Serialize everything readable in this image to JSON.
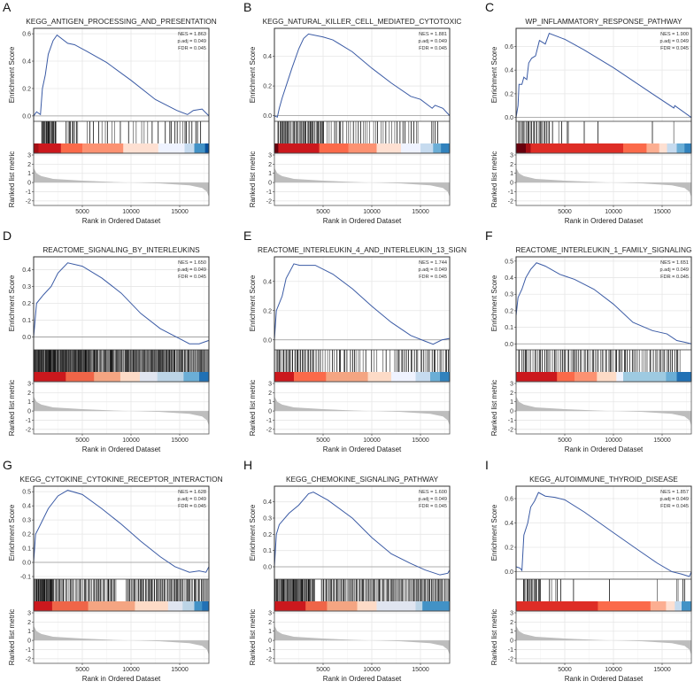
{
  "chart_data": [
    {
      "panel": "A",
      "type": "line",
      "title": "KEGG_ANTIGEN_PROCESSING_AND_PRESENTATION",
      "nes": "NES = 1.863",
      "padj": "p.adj = 0.049",
      "fdr": "FDR = 0.045",
      "ylim": [
        -0.02,
        0.62
      ],
      "yticks": [
        0,
        0.2,
        0.4,
        0.6
      ],
      "es": [
        [
          0,
          0
        ],
        [
          300,
          0.03
        ],
        [
          700,
          0.01
        ],
        [
          900,
          0.2
        ],
        [
          1200,
          0.3
        ],
        [
          1500,
          0.45
        ],
        [
          2000,
          0.55
        ],
        [
          2400,
          0.59
        ],
        [
          3500,
          0.53
        ],
        [
          4200,
          0.52
        ],
        [
          5500,
          0.47
        ],
        [
          7500,
          0.39
        ],
        [
          10000,
          0.26
        ],
        [
          12500,
          0.12
        ],
        [
          14700,
          0.04
        ],
        [
          15800,
          0.01
        ],
        [
          16400,
          0.04
        ],
        [
          17300,
          0.05
        ],
        [
          18000,
          0
        ]
      ],
      "hit_ranges": [
        [
          800,
          2300,
          22
        ],
        [
          3300,
          4600,
          9
        ],
        [
          5300,
          9000,
          10
        ],
        [
          9500,
          13000,
          8
        ],
        [
          13500,
          17300,
          14
        ]
      ],
      "heat": [
        [
          0,
          "#a50f15"
        ],
        [
          500,
          "#cb181d"
        ],
        [
          2800,
          "#fb6a4a"
        ],
        [
          5000,
          "#fc9272"
        ],
        [
          9200,
          "#fee0d2"
        ],
        [
          12800,
          "#eff3ff"
        ],
        [
          15500,
          "#c6dbef"
        ],
        [
          16500,
          "#4292c6"
        ],
        [
          17600,
          "#08519c"
        ]
      ]
    },
    {
      "panel": "B",
      "type": "line",
      "title": "KEGG_NATURAL_KILLER_CELL_MEDIATED_CYTOTOXIC",
      "nes": "NES = 1.881",
      "padj": "p.adj = 0.049",
      "fdr": "FDR = 0.045",
      "ylim": [
        -0.02,
        0.57
      ],
      "yticks": [
        0,
        0.2,
        0.4
      ],
      "es": [
        [
          0,
          0
        ],
        [
          300,
          -0.01
        ],
        [
          500,
          0.05
        ],
        [
          800,
          0.12
        ],
        [
          1200,
          0.2
        ],
        [
          1800,
          0.32
        ],
        [
          2500,
          0.45
        ],
        [
          3000,
          0.52
        ],
        [
          3500,
          0.55
        ],
        [
          5000,
          0.53
        ],
        [
          6000,
          0.51
        ],
        [
          8000,
          0.43
        ],
        [
          10000,
          0.32
        ],
        [
          12000,
          0.22
        ],
        [
          14000,
          0.13
        ],
        [
          15000,
          0.11
        ],
        [
          16200,
          0.05
        ],
        [
          16500,
          0.07
        ],
        [
          17300,
          0.05
        ],
        [
          18000,
          0
        ]
      ],
      "hit_ranges": [
        [
          300,
          5000,
          45
        ],
        [
          5000,
          10000,
          20
        ],
        [
          10000,
          15000,
          18
        ],
        [
          16000,
          17000,
          4
        ]
      ],
      "heat": [
        [
          0,
          "#67000d"
        ],
        [
          400,
          "#cb181d"
        ],
        [
          4600,
          "#fb6a4a"
        ],
        [
          7600,
          "#fc9272"
        ],
        [
          10500,
          "#fee0d2"
        ],
        [
          13000,
          "#eff3ff"
        ],
        [
          15000,
          "#c6dbef"
        ],
        [
          16300,
          "#6baed6"
        ],
        [
          17100,
          "#3182bd"
        ]
      ]
    },
    {
      "panel": "C",
      "type": "line",
      "title": "WP_INFLAMMATORY_RESPONSE_PATHWAY",
      "nes": "NES = 1.900",
      "padj": "p.adj = 0.049",
      "fdr": "FDR = 0.045",
      "ylim": [
        -0.01,
        0.73
      ],
      "yticks": [
        0,
        0.2,
        0.4,
        0.6
      ],
      "es": [
        [
          0,
          0
        ],
        [
          200,
          0.1
        ],
        [
          300,
          0.28
        ],
        [
          600,
          0.28
        ],
        [
          800,
          0.34
        ],
        [
          1100,
          0.32
        ],
        [
          1300,
          0.46
        ],
        [
          1600,
          0.5
        ],
        [
          2000,
          0.52
        ],
        [
          2400,
          0.65
        ],
        [
          3000,
          0.62
        ],
        [
          3400,
          0.71
        ],
        [
          5000,
          0.66
        ],
        [
          7000,
          0.57
        ],
        [
          10000,
          0.42
        ],
        [
          14000,
          0.2
        ],
        [
          16200,
          0.08
        ],
        [
          16300,
          0.1
        ],
        [
          18000,
          0
        ]
      ],
      "hit_ranges": [
        [
          200,
          3500,
          24
        ],
        [
          3600,
          5800,
          5
        ],
        [
          7000,
          7000,
          1
        ],
        [
          8400,
          8400,
          1
        ],
        [
          14000,
          14000,
          1
        ],
        [
          16200,
          16200,
          1
        ]
      ],
      "heat": [
        [
          0,
          "#67000d"
        ],
        [
          1000,
          "#a50f15"
        ],
        [
          1500,
          "#de2d26"
        ],
        [
          11000,
          "#fb6a4a"
        ],
        [
          13400,
          "#fcae91"
        ],
        [
          14700,
          "#fee0d2"
        ],
        [
          15500,
          "#c6dbef"
        ],
        [
          16500,
          "#6baed6"
        ],
        [
          17300,
          "#3182bd"
        ]
      ]
    },
    {
      "panel": "D",
      "type": "line",
      "title": "REACTOME_SIGNALING_BY_INTERLEUKINS",
      "nes": "NES = 1.650",
      "padj": "p.adj = 0.049",
      "fdr": "FDR = 0.045",
      "ylim": [
        -0.06,
        0.46
      ],
      "yticks": [
        0,
        0.1,
        0.2,
        0.3,
        0.4
      ],
      "es": [
        [
          0,
          0
        ],
        [
          300,
          0.2
        ],
        [
          1000,
          0.25
        ],
        [
          1800,
          0.3
        ],
        [
          2500,
          0.38
        ],
        [
          3500,
          0.44
        ],
        [
          5000,
          0.42
        ],
        [
          7000,
          0.35
        ],
        [
          9000,
          0.26
        ],
        [
          11000,
          0.14
        ],
        [
          13000,
          0.05
        ],
        [
          15000,
          -0.01
        ],
        [
          16000,
          -0.04
        ],
        [
          17000,
          -0.04
        ],
        [
          18000,
          -0.02
        ]
      ],
      "hit_ranges": [
        [
          0,
          6000,
          110
        ],
        [
          6000,
          12000,
          80
        ],
        [
          12000,
          18000,
          70
        ]
      ],
      "heat": [
        [
          0,
          "#cb181d"
        ],
        [
          3300,
          "#ef6548"
        ],
        [
          6200,
          "#f4a582"
        ],
        [
          8900,
          "#fddbc7"
        ],
        [
          10900,
          "#e0e5f0"
        ],
        [
          12700,
          "#bcd4e6"
        ],
        [
          15400,
          "#6baed6"
        ],
        [
          17000,
          "#2171b5"
        ]
      ]
    },
    {
      "panel": "E",
      "type": "line",
      "title": "REACTOME_INTERLEUKIN_4_AND_INTERLEUKIN_13_SIGN",
      "nes": "NES = 1.744",
      "padj": "p.adj = 0.049",
      "fdr": "FDR = 0.045",
      "ylim": [
        -0.05,
        0.55
      ],
      "yticks": [
        0,
        0.2,
        0.4
      ],
      "es": [
        [
          0,
          0
        ],
        [
          200,
          0.2
        ],
        [
          800,
          0.3
        ],
        [
          1200,
          0.42
        ],
        [
          2000,
          0.52
        ],
        [
          2600,
          0.51
        ],
        [
          4200,
          0.51
        ],
        [
          6000,
          0.45
        ],
        [
          8000,
          0.35
        ],
        [
          10000,
          0.23
        ],
        [
          12000,
          0.12
        ],
        [
          14000,
          0.03
        ],
        [
          15500,
          -0.01
        ],
        [
          16300,
          -0.03
        ],
        [
          17200,
          0
        ],
        [
          18000,
          0.01
        ]
      ],
      "hit_ranges": [
        [
          0,
          4000,
          30
        ],
        [
          4000,
          9000,
          22
        ],
        [
          9000,
          12000,
          8
        ],
        [
          12200,
          18000,
          30
        ]
      ],
      "heat": [
        [
          0,
          "#cb181d"
        ],
        [
          2000,
          "#fb6a4a"
        ],
        [
          5300,
          "#f4a582"
        ],
        [
          9600,
          "#fddbc7"
        ],
        [
          12000,
          "#eff3ff"
        ],
        [
          14500,
          "#c6dbef"
        ],
        [
          16000,
          "#6baed6"
        ],
        [
          17000,
          "#3182bd"
        ]
      ]
    },
    {
      "panel": "F",
      "type": "line",
      "title": "REACTOME_INTERLEUKIN_1_FAMILY_SIGNALING",
      "nes": "NES = 1.651",
      "padj": "p.adj = 0.049",
      "fdr": "FDR = 0.045",
      "ylim": [
        -0.02,
        0.51
      ],
      "yticks": [
        0,
        0.1,
        0.2,
        0.3,
        0.4,
        0.5
      ],
      "es": [
        [
          0,
          0.17
        ],
        [
          200,
          0.28
        ],
        [
          600,
          0.33
        ],
        [
          1000,
          0.4
        ],
        [
          1500,
          0.45
        ],
        [
          2100,
          0.49
        ],
        [
          3000,
          0.47
        ],
        [
          4500,
          0.42
        ],
        [
          6000,
          0.39
        ],
        [
          8000,
          0.33
        ],
        [
          10000,
          0.24
        ],
        [
          12000,
          0.13
        ],
        [
          14000,
          0.08
        ],
        [
          15500,
          0.06
        ],
        [
          16500,
          0.02
        ],
        [
          17300,
          0.01
        ],
        [
          18000,
          0
        ]
      ],
      "hit_ranges": [
        [
          0,
          5000,
          30
        ],
        [
          5000,
          11000,
          35
        ],
        [
          11000,
          17000,
          30
        ]
      ],
      "heat": [
        [
          0,
          "#cb181d"
        ],
        [
          4200,
          "#fb6a4a"
        ],
        [
          6000,
          "#fc9272"
        ],
        [
          8300,
          "#fddbc7"
        ],
        [
          10300,
          "#eff3ff"
        ],
        [
          11000,
          "#9ecae1"
        ],
        [
          15400,
          "#6baed6"
        ],
        [
          16500,
          "#2171b5"
        ]
      ]
    },
    {
      "panel": "G",
      "type": "line",
      "title": "KEGG_CYTOKINE_CYTOKINE_RECEPTOR_INTERACTION",
      "nes": "NES = 1.628",
      "padj": "p.adj = 0.049",
      "fdr": "FDR = 0.045",
      "ylim": [
        -0.1,
        0.52
      ],
      "yticks": [
        -0.1,
        0,
        0.1,
        0.2,
        0.3,
        0.4,
        0.5
      ],
      "es": [
        [
          0,
          0
        ],
        [
          200,
          0.2
        ],
        [
          500,
          0.24
        ],
        [
          1500,
          0.38
        ],
        [
          2500,
          0.47
        ],
        [
          3500,
          0.51
        ],
        [
          5000,
          0.48
        ],
        [
          7000,
          0.38
        ],
        [
          9000,
          0.27
        ],
        [
          11000,
          0.15
        ],
        [
          13000,
          0.04
        ],
        [
          14500,
          -0.03
        ],
        [
          16000,
          -0.07
        ],
        [
          17000,
          -0.06
        ],
        [
          17700,
          -0.07
        ],
        [
          18000,
          -0.03
        ]
      ],
      "hit_ranges": [
        [
          0,
          2000,
          40
        ],
        [
          2000,
          8500,
          50
        ],
        [
          9500,
          18000,
          70
        ]
      ],
      "heat": [
        [
          0,
          "#cb181d"
        ],
        [
          1900,
          "#ef6548"
        ],
        [
          5600,
          "#f4a582"
        ],
        [
          10400,
          "#fddbc7"
        ],
        [
          13800,
          "#e0e5f0"
        ],
        [
          15300,
          "#bcd4e6"
        ],
        [
          16500,
          "#4292c6"
        ],
        [
          17300,
          "#2171b5"
        ]
      ]
    },
    {
      "panel": "H",
      "type": "line",
      "title": "KEGG_CHEMOKINE_SIGNALING_PATHWAY",
      "nes": "NES = 1.600",
      "padj": "p.adj = 0.049",
      "fdr": "FDR = 0.045",
      "ylim": [
        -0.06,
        0.48
      ],
      "yticks": [
        0,
        0.1,
        0.2,
        0.3,
        0.4
      ],
      "es": [
        [
          0,
          0
        ],
        [
          200,
          0.2
        ],
        [
          500,
          0.26
        ],
        [
          1500,
          0.33
        ],
        [
          2500,
          0.38
        ],
        [
          3500,
          0.45
        ],
        [
          4000,
          0.46
        ],
        [
          5500,
          0.41
        ],
        [
          8000,
          0.3
        ],
        [
          10000,
          0.18
        ],
        [
          12000,
          0.08
        ],
        [
          14000,
          0.02
        ],
        [
          15500,
          -0.02
        ],
        [
          17000,
          -0.05
        ],
        [
          17800,
          -0.04
        ],
        [
          18000,
          -0.02
        ]
      ],
      "hit_ranges": [
        [
          0,
          4200,
          60
        ],
        [
          4800,
          12000,
          60
        ],
        [
          12000,
          18000,
          50
        ]
      ],
      "heat": [
        [
          0,
          "#cb181d"
        ],
        [
          3200,
          "#ef6548"
        ],
        [
          5400,
          "#f4a582"
        ],
        [
          8500,
          "#fddbc7"
        ],
        [
          10500,
          "#e0e5f0"
        ],
        [
          14500,
          "#bcd4e6"
        ],
        [
          15200,
          "#4292c6"
        ]
      ]
    },
    {
      "panel": "I",
      "type": "line",
      "title": "KEGG_AUTOIMMUNE_THYROID_DISEASE",
      "nes": "NES = 1.857",
      "padj": "p.adj = 0.049",
      "fdr": "FDR = 0.045",
      "ylim": [
        -0.04,
        0.68
      ],
      "yticks": [
        0,
        0.2,
        0.4,
        0.6
      ],
      "es": [
        [
          0,
          0.04
        ],
        [
          400,
          0.03
        ],
        [
          600,
          0.01
        ],
        [
          800,
          0.3
        ],
        [
          1200,
          0.4
        ],
        [
          1500,
          0.53
        ],
        [
          1900,
          0.58
        ],
        [
          2300,
          0.65
        ],
        [
          3000,
          0.62
        ],
        [
          4000,
          0.61
        ],
        [
          5000,
          0.59
        ],
        [
          7000,
          0.49
        ],
        [
          10000,
          0.32
        ],
        [
          12500,
          0.18
        ],
        [
          14500,
          0.07
        ],
        [
          16000,
          0
        ],
        [
          17000,
          -0.02
        ],
        [
          17800,
          -0.04
        ],
        [
          18000,
          0
        ]
      ],
      "hit_ranges": [
        [
          700,
          2600,
          16
        ],
        [
          3300,
          4800,
          5
        ],
        [
          5900,
          5900,
          1
        ],
        [
          9600,
          9600,
          1
        ],
        [
          14500,
          14500,
          1
        ],
        [
          16300,
          17500,
          4
        ]
      ],
      "heat": [
        [
          0,
          "#de2d26"
        ],
        [
          8400,
          "#fb6a4a"
        ],
        [
          13800,
          "#fcae91"
        ],
        [
          15400,
          "#fee0d2"
        ],
        [
          16300,
          "#c6dbef"
        ],
        [
          17000,
          "#4292c6"
        ]
      ]
    }
  ],
  "shared": {
    "xlabel": "Rank in Ordered Dataset",
    "ylabel_top": "Enrichment Score",
    "ylabel_bottom": "Ranked list metric",
    "xlim": [
      0,
      18000
    ],
    "xticks": [
      5000,
      10000,
      15000
    ],
    "ranked_ylim": [
      -2.5,
      3
    ],
    "ranked_yticks": [
      -2,
      -1,
      0,
      1,
      2,
      3
    ],
    "ranked_metric": [
      [
        0,
        1.6
      ],
      [
        300,
        1.0
      ],
      [
        800,
        0.7
      ],
      [
        2000,
        0.4
      ],
      [
        5000,
        0.2
      ],
      [
        9000,
        0.02
      ],
      [
        13000,
        -0.1
      ],
      [
        16000,
        -0.3
      ],
      [
        17300,
        -0.6
      ],
      [
        17800,
        -1.0
      ],
      [
        18000,
        -1.6
      ]
    ],
    "curve_color": "#3b5ba5"
  }
}
